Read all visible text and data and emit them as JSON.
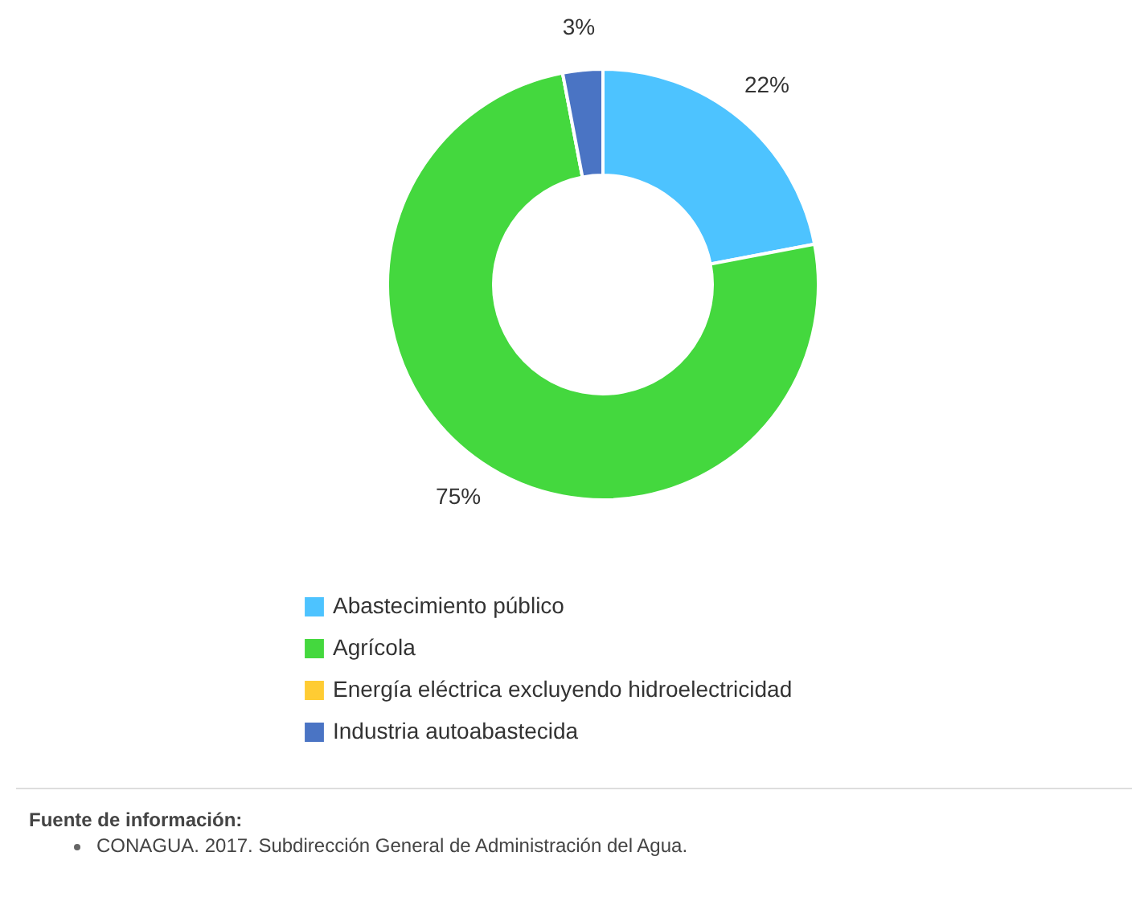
{
  "chart_data": {
    "type": "donut",
    "categories": [
      "Abastecimiento público",
      "Agrícola",
      "Energía eléctrica excluyendo hidroelectricidad",
      "Industria autoabastecida"
    ],
    "values": [
      22,
      75,
      0,
      3
    ],
    "colors": [
      "#4dc3ff",
      "#44d83e",
      "#ffcc33",
      "#4a74c4"
    ],
    "value_labels": [
      "22%",
      "75%",
      null,
      "3%"
    ],
    "legend": "bottom",
    "annotations": [
      "Fuente de información:",
      "CONAGUA. 2017. Subdirección General de Administración del Agua."
    ]
  }
}
